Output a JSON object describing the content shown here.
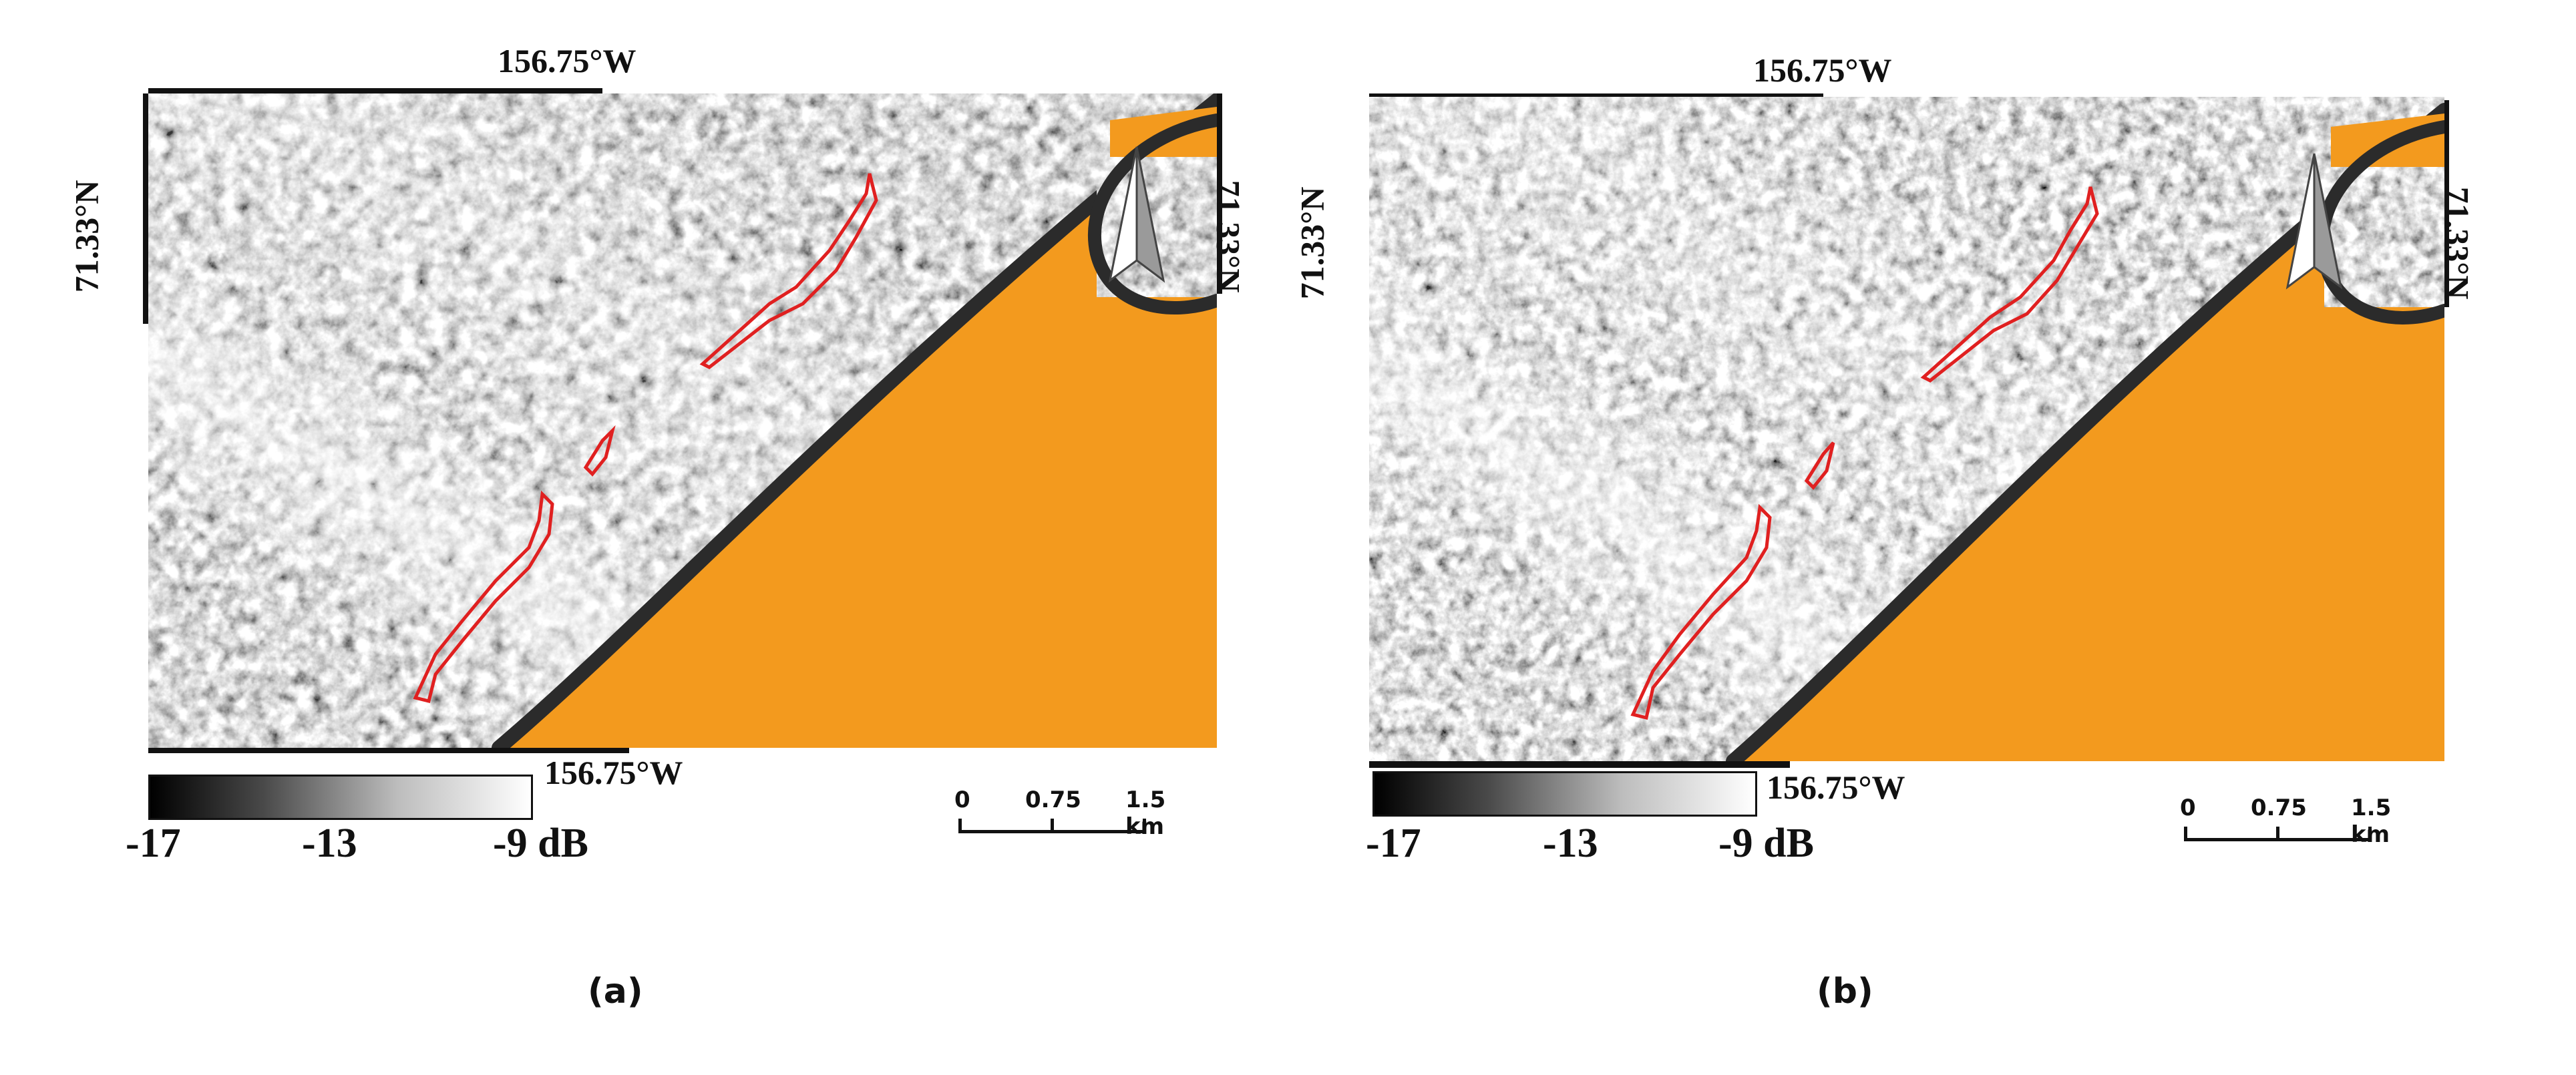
{
  "panels": [
    {
      "caption": "(a)",
      "lon_top": "156.75°W",
      "lon_bottom": "156.75°W",
      "lat_left": "71.33°N",
      "lat_right": "71.33°N",
      "colorbar": {
        "min": "-17",
        "mid": "-13",
        "max": "-9 dB"
      },
      "scalebar": {
        "t0": "0",
        "t1": "0.75",
        "t2": "1.5 km"
      }
    },
    {
      "caption": "(b)",
      "lon_top": "156.75°W",
      "lon_bottom": "156.75°W",
      "lat_left": "71.33°N",
      "lat_right": "71.33°N",
      "colorbar": {
        "min": "-17",
        "mid": "-13",
        "max": "-9 dB"
      },
      "scalebar": {
        "t0": "0",
        "t1": "0.75",
        "t2": "1.5 km"
      }
    }
  ],
  "colors": {
    "ocean": "#F39A1E",
    "outline": "#E02020",
    "coast": "#2B2B2B"
  },
  "icons": {
    "north_arrow": "north-arrow-icon"
  }
}
